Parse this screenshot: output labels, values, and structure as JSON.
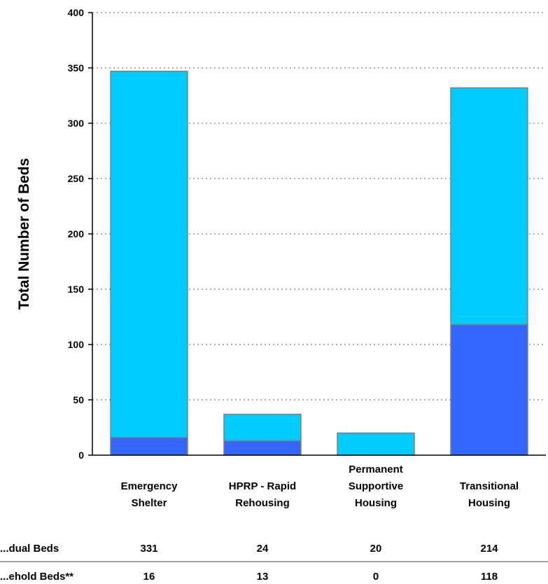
{
  "chart_data": {
    "type": "bar",
    "stacked": true,
    "categories": [
      [
        "Emergency",
        "Shelter"
      ],
      [
        "HPRP - Rapid",
        "Rehousing"
      ],
      [
        "Permanent",
        "Supportive",
        "Housing"
      ],
      [
        "Transitional",
        "Housing"
      ]
    ],
    "series": [
      {
        "values": [
          16,
          13,
          0,
          118
        ],
        "color": "#3366ff"
      },
      {
        "values": [
          331,
          24,
          20,
          214
        ],
        "color": "#00ccff"
      }
    ],
    "ylabel": "Total Number of Beds",
    "ylim": [
      0,
      400
    ],
    "yticks": [
      0,
      50,
      100,
      150,
      200,
      250,
      300,
      350,
      400
    ],
    "grid": "horizontal dotted"
  },
  "table": {
    "rows": [
      {
        "label": "...dual Beds",
        "values": [
          "331",
          "24",
          "20",
          "214"
        ]
      },
      {
        "label": "...ehold Beds**",
        "values": [
          "16",
          "13",
          "0",
          "118"
        ]
      }
    ]
  }
}
